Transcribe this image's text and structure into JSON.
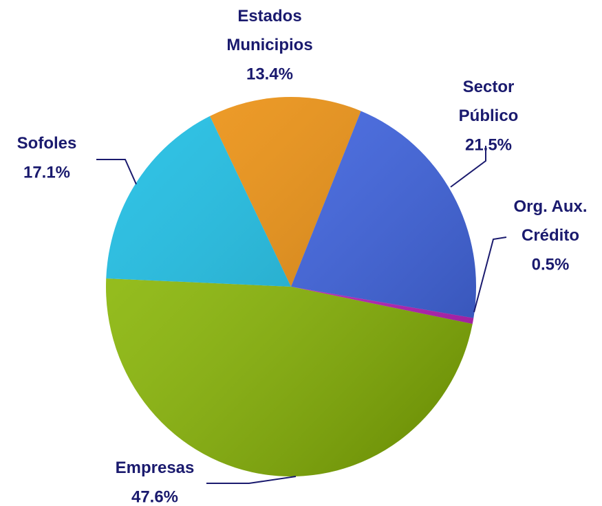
{
  "chart_data": {
    "type": "pie",
    "categories": [
      "Estados Municipios",
      "Sector Público",
      "Org. Aux. Crédito",
      "Empresas",
      "Sofoles"
    ],
    "values": [
      13.4,
      21.5,
      0.5,
      47.6,
      17.1
    ],
    "value_labels": [
      "13.4%",
      "21.5%",
      "0.5%",
      "47.6%",
      "17.1%"
    ],
    "colors": [
      "#f0900a",
      "#3a62e8",
      "#c41cc4",
      "#8cbc00",
      "#14bce4"
    ]
  }
}
